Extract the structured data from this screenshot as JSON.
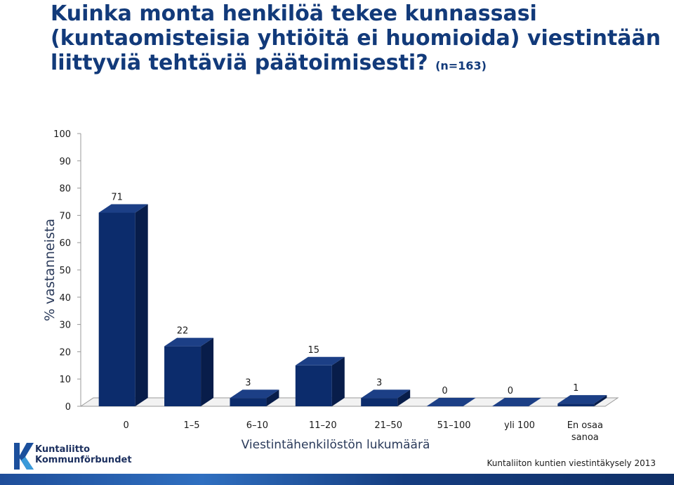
{
  "title": {
    "main": "Kuinka monta henkilöä tekee kunnassasi (kuntaomisteisia yhtiöitä ei huomioida) viestintään liittyviä tehtäviä päätoimisesti?",
    "n": "(n=163)"
  },
  "chart_data": {
    "type": "bar",
    "categories": [
      "0",
      "1–5",
      "6–10",
      "11–20",
      "21–50",
      "51–100",
      "yli 100",
      "En osaa sanoa"
    ],
    "values": [
      71,
      22,
      3,
      15,
      3,
      0,
      0,
      1
    ],
    "data_labels": [
      "71",
      "22",
      "3",
      "15",
      "3",
      "0",
      "0",
      "1"
    ],
    "xlabel": "Viestintähenkilöstön lukumäärä",
    "ylabel": "% vastanneista",
    "ylim": [
      0,
      100
    ],
    "yticks": [
      0,
      10,
      20,
      30,
      40,
      50,
      60,
      70,
      80,
      90,
      100
    ],
    "grid": false,
    "style": "3d-column",
    "colors": {
      "bar_front": "#0c2c6c",
      "bar_side": "#081d4a",
      "bar_top": "#1c3f86"
    }
  },
  "logo": {
    "line1": "Kuntaliitto",
    "line2": "Kommunförbundet"
  },
  "source": "Kuntaliiton kuntien viestintäkysely 2013",
  "colors": {
    "title": "#123a7a",
    "band": "#1f4e9a"
  }
}
